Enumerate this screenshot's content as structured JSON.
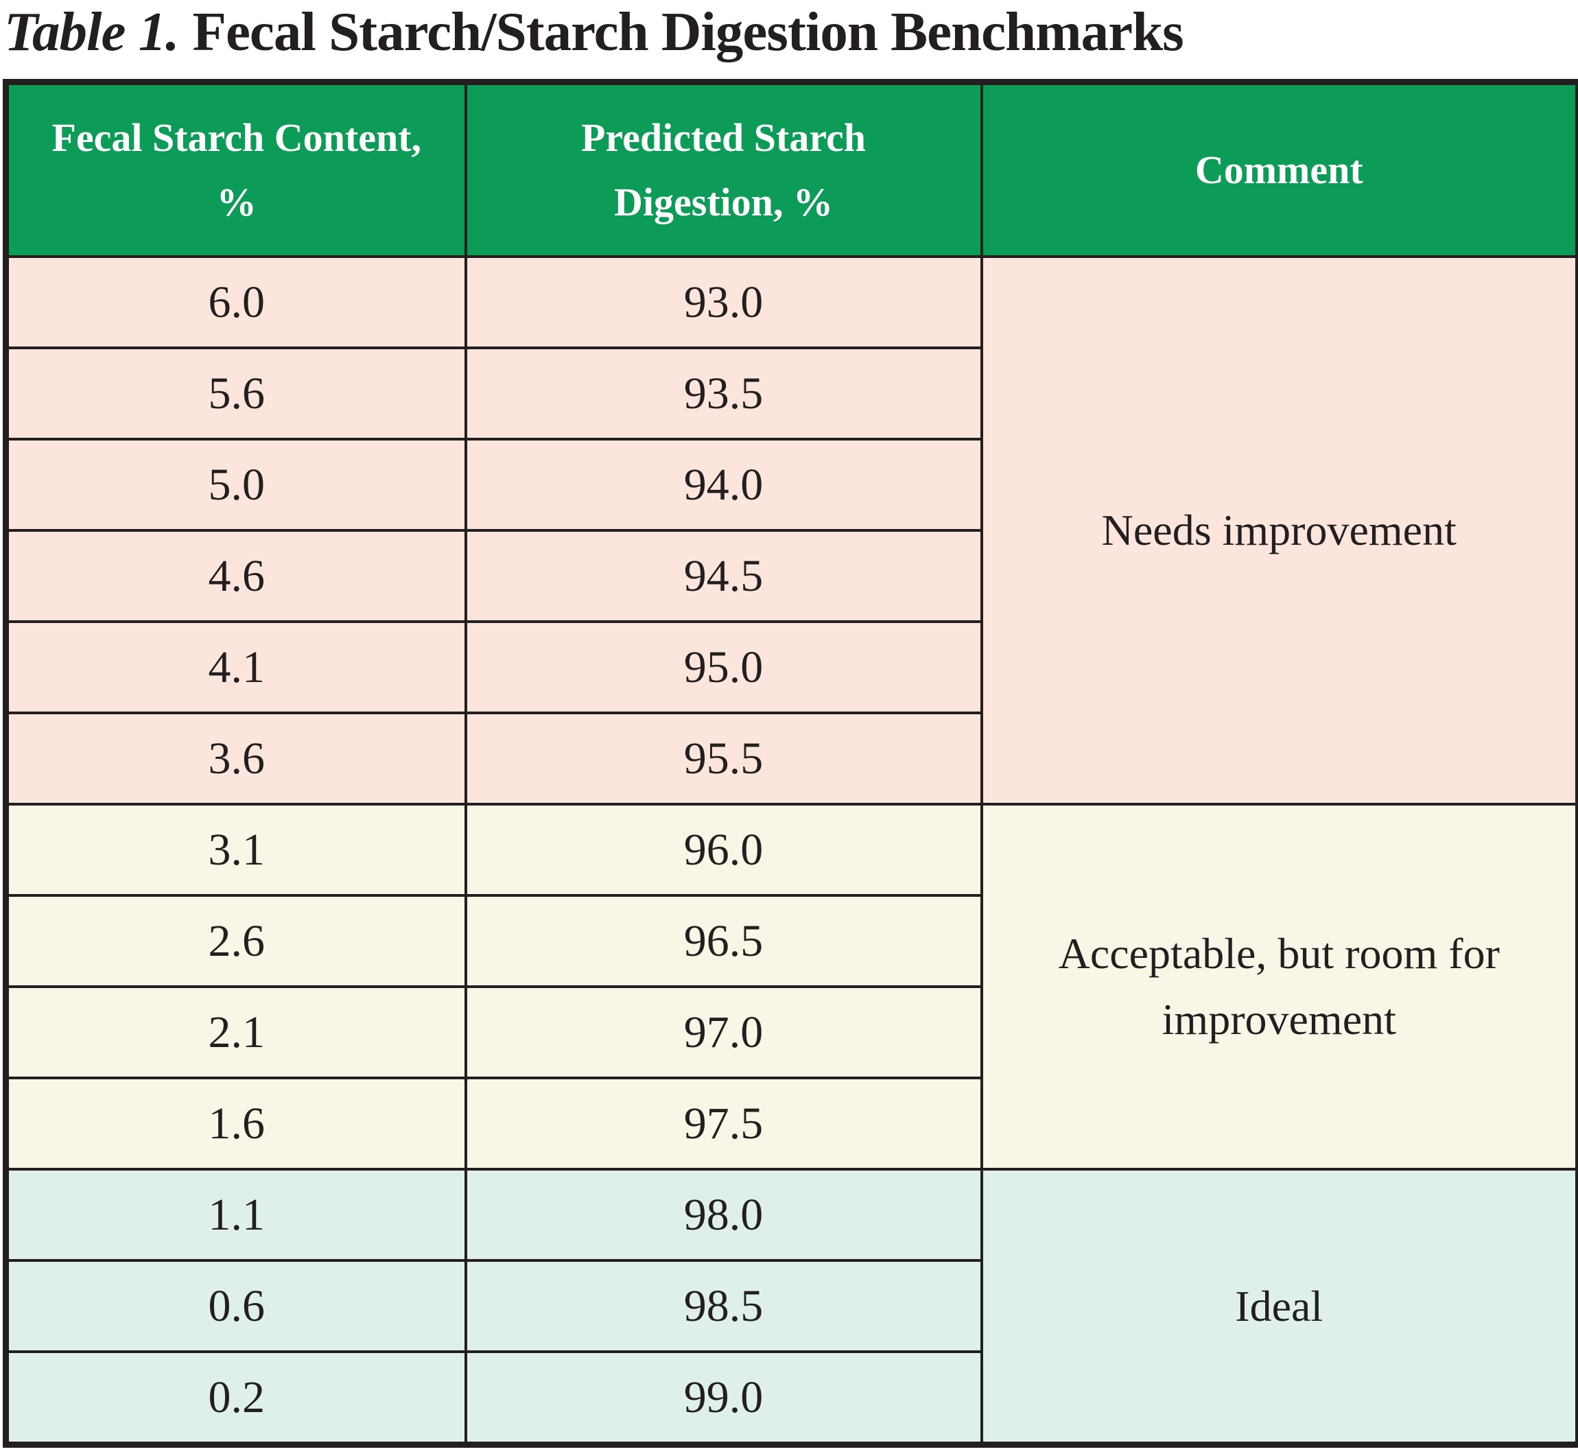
{
  "title": {
    "label_italic": "Table 1.",
    "label_rest": "Fecal Starch/Starch Digestion Benchmarks"
  },
  "table": {
    "columns": [
      "Fecal Starch Content, %",
      "Predicted Starch Digestion, %",
      "Comment"
    ],
    "header_bg_color": "#0d9b58",
    "header_text_color": "#ffffff",
    "border_color": "#231f20",
    "sections": [
      {
        "comment": "Needs improvement",
        "row_color": "#fbe5dc",
        "rows": [
          {
            "fecal_starch": "6.0",
            "digestion": "93.0"
          },
          {
            "fecal_starch": "5.6",
            "digestion": "93.5"
          },
          {
            "fecal_starch": "5.0",
            "digestion": "94.0"
          },
          {
            "fecal_starch": "4.6",
            "digestion": "94.5"
          },
          {
            "fecal_starch": "4.1",
            "digestion": "95.0"
          },
          {
            "fecal_starch": "3.6",
            "digestion": "95.5"
          }
        ]
      },
      {
        "comment": "Acceptable, but room for improvement",
        "row_color": "#f9f6e7",
        "rows": [
          {
            "fecal_starch": "3.1",
            "digestion": "96.0"
          },
          {
            "fecal_starch": "2.6",
            "digestion": "96.5"
          },
          {
            "fecal_starch": "2.1",
            "digestion": "97.0"
          },
          {
            "fecal_starch": "1.6",
            "digestion": "97.5"
          }
        ]
      },
      {
        "comment": "Ideal",
        "row_color": "#dff0e8",
        "rows": [
          {
            "fecal_starch": "1.1",
            "digestion": "98.0"
          },
          {
            "fecal_starch": "0.6",
            "digestion": "98.5"
          },
          {
            "fecal_starch": "0.2",
            "digestion": "99.0"
          }
        ]
      }
    ]
  }
}
